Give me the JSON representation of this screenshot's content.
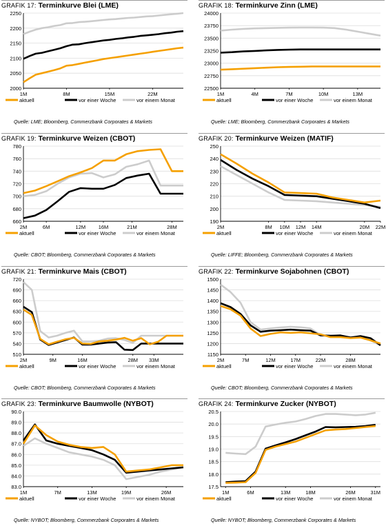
{
  "legend_labels": [
    "aktuell",
    "vor einer Woche",
    "vor einem Monat"
  ],
  "colors": {
    "aktuell": "#f5a000",
    "vor einer Woche": "#000000",
    "vor einem Monat": "#cccccc"
  },
  "chart_data": [
    {
      "label": "Grafik 17:",
      "title": "Terminkurve Blei (LME)",
      "source": "Quelle: LME; Bloomberg, Commerzbank Corporates & Markets",
      "type": "line",
      "ylim": [
        2000,
        2250
      ],
      "yticks": [
        2000,
        2050,
        2100,
        2150,
        2200,
        2250
      ],
      "x": [
        1,
        2,
        3,
        4,
        5,
        6,
        7,
        8,
        9,
        10,
        11,
        12,
        13,
        14,
        15,
        16,
        17,
        18,
        19,
        20,
        21,
        22,
        23,
        24,
        25,
        26,
        27
      ],
      "xlim": [
        1,
        27
      ],
      "xticks": [
        1,
        8,
        15,
        22
      ],
      "xticklabels": [
        "1M",
        "8M",
        "15M",
        "22M"
      ],
      "series": [
        {
          "name": "aktuell",
          "values": [
            2020,
            2033,
            2045,
            2050,
            2055,
            2060,
            2066,
            2075,
            2077,
            2081,
            2085,
            2089,
            2093,
            2097,
            2100,
            2103,
            2106,
            2109,
            2112,
            2115,
            2118,
            2121,
            2124,
            2127,
            2130,
            2133,
            2135
          ]
        },
        {
          "name": "vor einer Woche",
          "values": [
            2098,
            2107,
            2115,
            2118,
            2123,
            2128,
            2133,
            2140,
            2145,
            2146,
            2150,
            2153,
            2156,
            2159,
            2161,
            2164,
            2166,
            2169,
            2171,
            2174,
            2176,
            2178,
            2180,
            2183,
            2185,
            2188,
            2190
          ]
        },
        {
          "name": "vor einem Monat",
          "values": [
            2180,
            2188,
            2195,
            2200,
            2203,
            2207,
            2210,
            2216,
            2217,
            2220,
            2221,
            2223,
            2225,
            2227,
            2229,
            2230,
            2232,
            2234,
            2235,
            2237,
            2239,
            2240,
            2242,
            2244,
            2246,
            2248,
            2250
          ]
        }
      ]
    },
    {
      "label": "Grafik 18:",
      "title": "Terminkurve Zinn (LME)",
      "source": "Quelle: LME; Bloomberg, Commerzbank Corporates & Markets",
      "type": "line",
      "ylim": [
        22500,
        24000
      ],
      "yticks": [
        22500,
        22750,
        23000,
        23250,
        23500,
        23750,
        24000
      ],
      "x": [
        1,
        2,
        3,
        4,
        5,
        6,
        7,
        8,
        9,
        10,
        11,
        12,
        13,
        14,
        15
      ],
      "xlim": [
        1,
        15
      ],
      "xticks": [
        1,
        4,
        7,
        10,
        13
      ],
      "xticklabels": [
        "1M",
        "4M",
        "7M",
        "10M",
        "13M"
      ],
      "series": [
        {
          "name": "aktuell",
          "values": [
            22870,
            22880,
            22890,
            22900,
            22910,
            22920,
            22925,
            22930,
            22935,
            22935,
            22935,
            22935,
            22935,
            22935,
            22935
          ]
        },
        {
          "name": "vor einer Woche",
          "values": [
            23210,
            23220,
            23235,
            23245,
            23255,
            23265,
            23270,
            23275,
            23275,
            23275,
            23275,
            23275,
            23275,
            23275,
            23275
          ]
        },
        {
          "name": "vor einem Monat",
          "values": [
            23650,
            23670,
            23685,
            23695,
            23700,
            23705,
            23710,
            23712,
            23712,
            23710,
            23700,
            23670,
            23630,
            23590,
            23550
          ]
        }
      ]
    },
    {
      "label": "Grafik 19:",
      "title": "Terminkurve Weizen (CBOT)",
      "source": "Quelle: CBOT; Bloomberg, Commerzbank Corporates & Markets",
      "type": "line",
      "ylim": [
        660,
        780
      ],
      "yticks": [
        660,
        680,
        700,
        720,
        740,
        760,
        780
      ],
      "x": [
        2,
        4,
        6,
        8,
        10,
        12,
        14,
        16,
        18,
        20,
        22,
        24,
        26,
        28,
        30
      ],
      "xlim": [
        2,
        30
      ],
      "xticks": [
        2,
        6,
        12,
        16,
        21,
        28
      ],
      "xticklabels": [
        "2M",
        "6M",
        "12M",
        "16M",
        "21M",
        "28M"
      ],
      "series": [
        {
          "name": "aktuell",
          "values": [
            705,
            709,
            716,
            724,
            732,
            738,
            745,
            757,
            757,
            767,
            772,
            774,
            775,
            740,
            740
          ]
        },
        {
          "name": "vor einer Woche",
          "values": [
            665,
            669,
            678,
            692,
            707,
            713,
            712,
            712,
            718,
            729,
            733,
            736,
            704,
            704,
            704
          ]
        },
        {
          "name": "vor einem Monat",
          "values": [
            700,
            702,
            708,
            720,
            730,
            736,
            737,
            730,
            735,
            747,
            751,
            757,
            717,
            717,
            717
          ]
        }
      ]
    },
    {
      "label": "Grafik 20:",
      "title": "Terminkurve Weizen (MATIF)",
      "source": "Quelle: LIFFE; Bloomberg, Commerzbank Corporates & Markets",
      "type": "line",
      "ylim": [
        190,
        250
      ],
      "yticks": [
        190,
        200,
        210,
        220,
        230,
        240,
        250
      ],
      "x": [
        2,
        4,
        6,
        8,
        10,
        12,
        14,
        16,
        18,
        20,
        22
      ],
      "xlim": [
        2,
        22
      ],
      "xticks": [
        2,
        8,
        10,
        12,
        14,
        20,
        22
      ],
      "xticklabels": [
        "2M",
        "8M",
        "10M",
        "12M",
        "14M",
        "20M",
        "22M"
      ],
      "series": [
        {
          "name": "aktuell",
          "values": [
            243.5,
            236,
            228,
            221,
            213,
            212.5,
            212,
            209,
            207,
            205,
            206.5
          ]
        },
        {
          "name": "vor einer Woche",
          "values": [
            239,
            231,
            224,
            218,
            211,
            210.5,
            210,
            208,
            206,
            204,
            200.5
          ]
        },
        {
          "name": "vor einem Monat",
          "values": [
            234,
            227,
            220,
            213,
            207,
            206.5,
            206,
            205,
            204,
            203,
            201.5
          ]
        }
      ]
    },
    {
      "label": "Grafik 21:",
      "title": "Terminkurve Mais (CBOT)",
      "source": "Quelle: CBOT; Bloomberg, Commerzbank Corporates & Markets",
      "type": "line",
      "ylim": [
        510,
        720
      ],
      "yticks": [
        510,
        540,
        570,
        600,
        630,
        660,
        690,
        720
      ],
      "x": [
        2,
        4,
        6,
        8,
        10,
        12,
        14,
        16,
        18,
        20,
        22,
        24,
        26,
        28,
        30,
        32,
        34,
        36,
        38,
        40
      ],
      "xlim": [
        2,
        40
      ],
      "xticks": [
        2,
        9,
        16,
        28,
        33
      ],
      "xticklabels": [
        "2M",
        "9M",
        "16M",
        "28M",
        "33M"
      ],
      "series": [
        {
          "name": "aktuell",
          "values": [
            635,
            620,
            553,
            538,
            545,
            552,
            556,
            540,
            539,
            546,
            548,
            551,
            556,
            548,
            555,
            538,
            545,
            562,
            562,
            562
          ]
        },
        {
          "name": "vor einer Woche",
          "values": [
            643,
            628,
            551,
            536,
            543,
            550,
            557,
            537,
            537,
            540,
            543,
            544,
            523,
            522,
            540,
            540,
            540,
            540,
            540,
            540
          ]
        },
        {
          "name": "vor einem Monat",
          "values": [
            712,
            690,
            575,
            557,
            562,
            570,
            576,
            546,
            546,
            548,
            554,
            555,
            550,
            542,
            562,
            562,
            562,
            562,
            562,
            562
          ]
        }
      ]
    },
    {
      "label": "Grafik 22:",
      "title": "Terminkurve Sojabohnen (CBOT)",
      "source": "Quelle: CBOT; Bloomberg, Commerzbank Corporates & Markets",
      "type": "line",
      "ylim": [
        1150,
        1500
      ],
      "yticks": [
        1150,
        1200,
        1250,
        1300,
        1350,
        1400,
        1450,
        1500
      ],
      "x": [
        2,
        4,
        6,
        8,
        10,
        12,
        14,
        16,
        18,
        20,
        22,
        24,
        26,
        28,
        30,
        32,
        34
      ],
      "xlim": [
        2,
        34
      ],
      "xticks": [
        2,
        7,
        12,
        17,
        22,
        28
      ],
      "xticklabels": [
        "2M",
        "7M",
        "12M",
        "17M",
        "22M",
        "28M"
      ],
      "series": [
        {
          "name": "aktuell",
          "values": [
            1375,
            1360,
            1330,
            1270,
            1235,
            1245,
            1252,
            1250,
            1252,
            1248,
            1243,
            1230,
            1230,
            1225,
            1228,
            1215,
            1200
          ]
        },
        {
          "name": "vor einer Woche",
          "values": [
            1388,
            1370,
            1338,
            1285,
            1255,
            1260,
            1262,
            1265,
            1262,
            1260,
            1238,
            1236,
            1238,
            1228,
            1235,
            1225,
            1192
          ]
        },
        {
          "name": "vor einem Monat",
          "values": [
            1475,
            1440,
            1390,
            1300,
            1265,
            1270,
            1275,
            1278,
            1276,
            1270,
            1240,
            1238,
            1235,
            1230,
            1230,
            1215,
            1192
          ]
        }
      ]
    },
    {
      "label": "Grafik 23:",
      "title": "Terminkurve Baumwolle (NYBOT)",
      "source": "Quelle: NYBOT; Bloomberg, Commerzbank Corporates & Markets",
      "type": "line",
      "ylim": [
        83,
        90
      ],
      "yticks": [
        83,
        84,
        85,
        86,
        87,
        88,
        89,
        90
      ],
      "x": [
        1,
        3,
        5,
        7,
        9,
        11,
        13,
        15,
        17,
        19,
        21,
        23,
        25,
        27,
        29
      ],
      "xlim": [
        1,
        29
      ],
      "xticks": [
        1,
        7,
        13,
        19,
        26
      ],
      "xticklabels": [
        "1M",
        "7M",
        "13M",
        "19M",
        "26M"
      ],
      "series": [
        {
          "name": "aktuell",
          "values": [
            87.0,
            88.7,
            87.8,
            87.2,
            86.9,
            86.7,
            86.6,
            86.7,
            86.0,
            84.4,
            84.5,
            84.6,
            84.8,
            85.0,
            85.0
          ]
        },
        {
          "name": "vor einer Woche",
          "values": [
            87.3,
            88.8,
            87.3,
            87.0,
            86.8,
            86.6,
            86.4,
            86.0,
            85.5,
            84.3,
            84.4,
            84.5,
            84.6,
            84.7,
            84.8
          ]
        },
        {
          "name": "vor einem Monat",
          "values": [
            86.8,
            87.5,
            87.0,
            86.6,
            86.2,
            86.0,
            85.8,
            85.5,
            85.0,
            83.7,
            83.9,
            84.1,
            84.4,
            84.6,
            84.8
          ]
        }
      ]
    },
    {
      "label": "Grafik 24:",
      "title": "Terminkurve Zucker (NYBOT)",
      "source": "Quelle: NYBOT; Bloomberg, Commerzbank Corporates & Markets",
      "type": "line",
      "ylim": [
        17.5,
        20.5
      ],
      "yticks": [
        17.5,
        18.0,
        18.5,
        19.0,
        19.5,
        20.0,
        20.5
      ],
      "x": [
        1,
        3,
        5,
        7,
        9,
        11,
        13,
        15,
        17,
        19,
        21,
        23,
        25,
        27,
        29,
        31
      ],
      "xlim": [
        0,
        32
      ],
      "xticks": [
        1,
        6,
        13,
        18,
        26,
        31
      ],
      "xticklabels": [
        "1M",
        "6M",
        "13M",
        "18M",
        "26M",
        "31M"
      ],
      "series": [
        {
          "name": "aktuell",
          "values": [
            17.65,
            17.66,
            17.68,
            18.05,
            18.97,
            19.1,
            19.2,
            19.3,
            19.45,
            19.6,
            19.75,
            19.78,
            19.8,
            19.84,
            19.88,
            19.92
          ]
        },
        {
          "name": "vor einer Woche",
          "values": [
            17.68,
            17.7,
            17.72,
            18.1,
            19.02,
            19.15,
            19.27,
            19.4,
            19.55,
            19.7,
            19.88,
            19.87,
            19.88,
            19.89,
            19.92,
            19.97
          ]
        },
        {
          "name": "vor einem Monat",
          "values": [
            18.85,
            18.82,
            18.8,
            19.1,
            19.9,
            19.98,
            20.05,
            20.1,
            20.2,
            20.32,
            20.4,
            20.4,
            20.38,
            20.35,
            20.38,
            20.45
          ]
        }
      ]
    }
  ]
}
